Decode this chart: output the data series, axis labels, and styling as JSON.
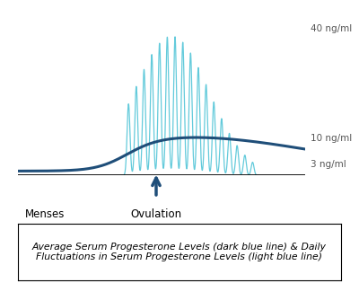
{
  "bg_color": "#ffffff",
  "dark_blue": "#1f4e79",
  "light_blue": "#5bc8d9",
  "red_color": "#e74c3c",
  "arrow_color": "#1f4e79",
  "y_labels": [
    "40 ng/ml",
    "10 ng/ml",
    "3 ng/ml"
  ],
  "y_values": [
    40,
    10,
    3
  ],
  "menses_label": "Menses",
  "ovulation_label": "Ovulation",
  "caption": "Average Serum Progesterone Levels (dark blue line) & Daily\nFluctuations in Serum Progesterone Levels (light blue line)"
}
